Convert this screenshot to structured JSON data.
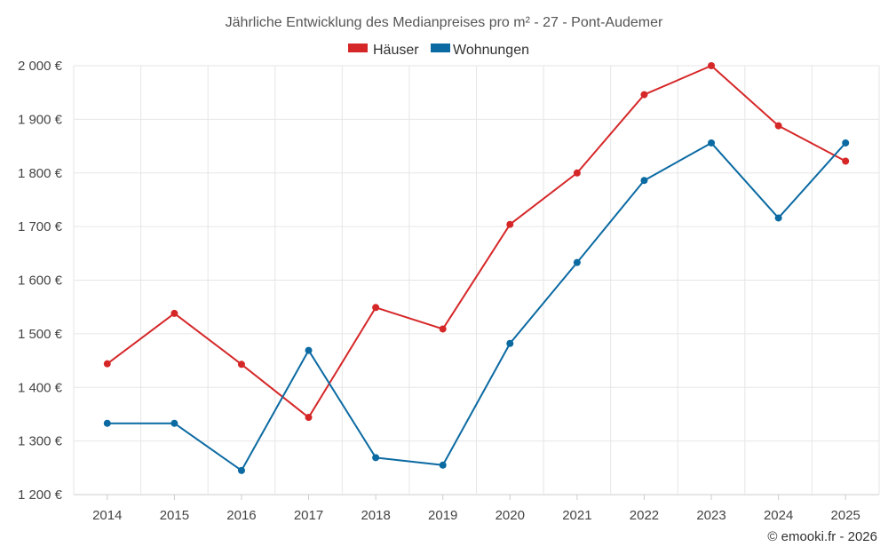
{
  "chart_data": {
    "type": "line",
    "title": "Jährliche Entwicklung des Medianpreises pro m² - 27 - Pont-Audemer",
    "categories": [
      "2014",
      "2015",
      "2016",
      "2017",
      "2018",
      "2019",
      "2020",
      "2021",
      "2022",
      "2023",
      "2024",
      "2025"
    ],
    "series": [
      {
        "name": "Häuser",
        "color": "#d62728",
        "values": [
          1444,
          1538,
          1443,
          1344,
          1549,
          1509,
          1704,
          1800,
          1946,
          2000,
          1888,
          1822
        ]
      },
      {
        "name": "Wohnungen",
        "color": "#0b6aa2",
        "values": [
          1333,
          1333,
          1245,
          1469,
          1269,
          1255,
          1482,
          1633,
          1786,
          1856,
          1716,
          1856
        ]
      }
    ],
    "y_ticks": [
      "1 200 €",
      "1 300 €",
      "1 400 €",
      "1 500 €",
      "1 600 €",
      "1 700 €",
      "1 800 €",
      "1 900 €",
      "2 000 €"
    ],
    "y_tick_values": [
      1200,
      1300,
      1400,
      1500,
      1600,
      1700,
      1800,
      1900,
      2000
    ],
    "ylim": [
      1200,
      2000
    ],
    "xlabel": "",
    "ylabel": "",
    "grid": true,
    "legend_position": "top-center"
  },
  "credit": "© emooki.fr - 2026"
}
